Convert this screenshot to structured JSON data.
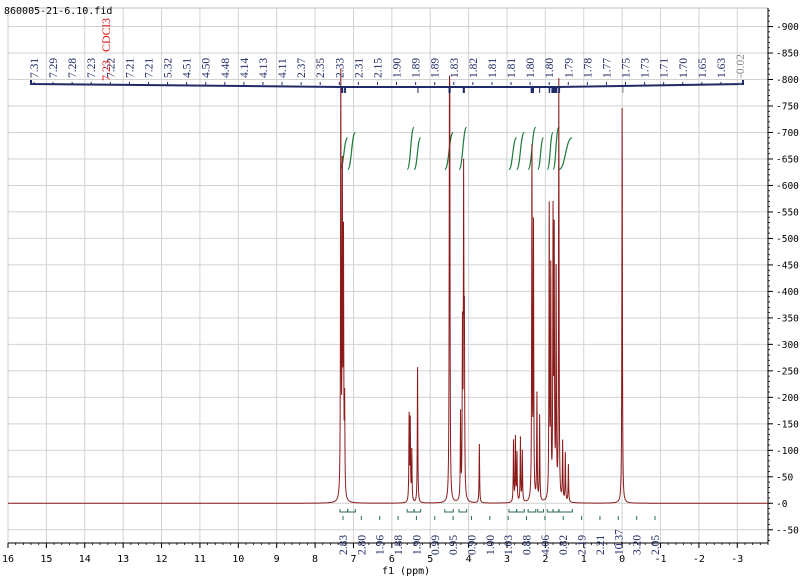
{
  "file_label": "860005-21-6.10.fid",
  "solvent_label": "CDCl3",
  "solvent_shift": "7.23",
  "colors": {
    "spectrum": "#8b1a1a",
    "peak_label": "#1f2a66",
    "peak_label_grey": "#8a8a8a",
    "solvent": "#e01010",
    "integral": "#1e7a3a",
    "grid": "#d2d2d2"
  },
  "chart_data": {
    "type": "line",
    "title": "",
    "xlabel": "f1 (ppm)",
    "ylabel": "",
    "xlim": [
      16,
      -3.8
    ],
    "ylim": [
      -75,
      935
    ],
    "x_ticks": [
      "16",
      "15",
      "14",
      "13",
      "12",
      "11",
      "10",
      "9",
      "8",
      "7",
      "6",
      "5",
      "4",
      "3",
      "2",
      "1",
      "0",
      "-1",
      "-2",
      "-3"
    ],
    "y_ticks": [
      "-50",
      "0",
      "50",
      "100",
      "150",
      "200",
      "250",
      "300",
      "350",
      "400",
      "450",
      "500",
      "550",
      "600",
      "650",
      "700",
      "750",
      "800",
      "850",
      "900"
    ],
    "grid": true,
    "peak_labels": [
      "7.31",
      "7.29",
      "7.28",
      "7.23",
      "7.22",
      "7.21",
      "7.21",
      "5.32",
      "4.51",
      "4.50",
      "4.48",
      "4.14",
      "4.13",
      "4.11",
      "2.37",
      "2.35",
      "2.33",
      "2.31",
      "2.15",
      "1.90",
      "1.89",
      "1.89",
      "1.83",
      "1.82",
      "1.81",
      "1.81",
      "1.80",
      "1.80",
      "1.79",
      "1.78",
      "1.77",
      "1.75",
      "1.73",
      "1.71",
      "1.70",
      "1.65",
      "1.63",
      "-0.02"
    ],
    "integrals": [
      {
        "from": 7.35,
        "to": 7.15,
        "value": "2.83"
      },
      {
        "from": 7.15,
        "to": 6.95,
        "value": "2.80"
      },
      {
        "from": 5.6,
        "to": 5.42,
        "value": "0.99"
      },
      {
        "from": 5.42,
        "to": 5.25,
        "value": "0.95"
      },
      {
        "from": 4.62,
        "to": 4.4,
        "value": "0.90"
      },
      {
        "from": 4.25,
        "to": 4.05,
        "value": "1.00"
      },
      {
        "from": 2.95,
        "to": 2.75,
        "value": "1.03"
      },
      {
        "from": 2.75,
        "to": 2.55,
        "value": "0.88"
      },
      {
        "from": 2.45,
        "to": 2.25,
        "value": "4.06"
      },
      {
        "from": 2.2,
        "to": 2.05,
        "value": "0.82"
      },
      {
        "from": 1.95,
        "to": 1.8,
        "value": "2.19"
      },
      {
        "from": 1.8,
        "to": 1.65,
        "value": "10.37"
      },
      {
        "from": 1.65,
        "to": 1.3,
        "value": "3.20"
      }
    ],
    "integral_labels_extra": [
      "1.96",
      "1.88",
      "1.90",
      "2.21",
      "2.05"
    ],
    "series": [
      {
        "peaks": [
          {
            "ppm": 7.33,
            "height": 790
          },
          {
            "ppm": 7.29,
            "height": 590
          },
          {
            "ppm": 7.26,
            "height": 470
          },
          {
            "ppm": 7.23,
            "height": 170
          },
          {
            "ppm": 5.55,
            "height": 160
          },
          {
            "ppm": 5.52,
            "height": 150
          },
          {
            "ppm": 5.48,
            "height": 95
          },
          {
            "ppm": 5.33,
            "height": 255
          },
          {
            "ppm": 4.5,
            "height": 575
          },
          {
            "ppm": 4.49,
            "height": 540
          },
          {
            "ppm": 4.21,
            "height": 160
          },
          {
            "ppm": 4.16,
            "height": 310
          },
          {
            "ppm": 4.13,
            "height": 585
          },
          {
            "ppm": 4.11,
            "height": 300
          },
          {
            "ppm": 3.72,
            "height": 110
          },
          {
            "ppm": 2.83,
            "height": 115
          },
          {
            "ppm": 2.78,
            "height": 120
          },
          {
            "ppm": 2.74,
            "height": 90
          },
          {
            "ppm": 2.65,
            "height": 120
          },
          {
            "ppm": 2.6,
            "height": 95
          },
          {
            "ppm": 2.35,
            "height": 655
          },
          {
            "ppm": 2.31,
            "height": 510
          },
          {
            "ppm": 2.22,
            "height": 200
          },
          {
            "ppm": 2.15,
            "height": 160
          },
          {
            "ppm": 1.9,
            "height": 545
          },
          {
            "ppm": 1.86,
            "height": 420
          },
          {
            "ppm": 1.8,
            "height": 520
          },
          {
            "ppm": 1.77,
            "height": 480
          },
          {
            "ppm": 1.72,
            "height": 420
          },
          {
            "ppm": 1.65,
            "height": 790
          },
          {
            "ppm": 1.55,
            "height": 110
          },
          {
            "ppm": 1.48,
            "height": 90
          },
          {
            "ppm": 1.4,
            "height": 70
          },
          {
            "ppm": 0.0,
            "height": 745
          }
        ]
      }
    ]
  }
}
